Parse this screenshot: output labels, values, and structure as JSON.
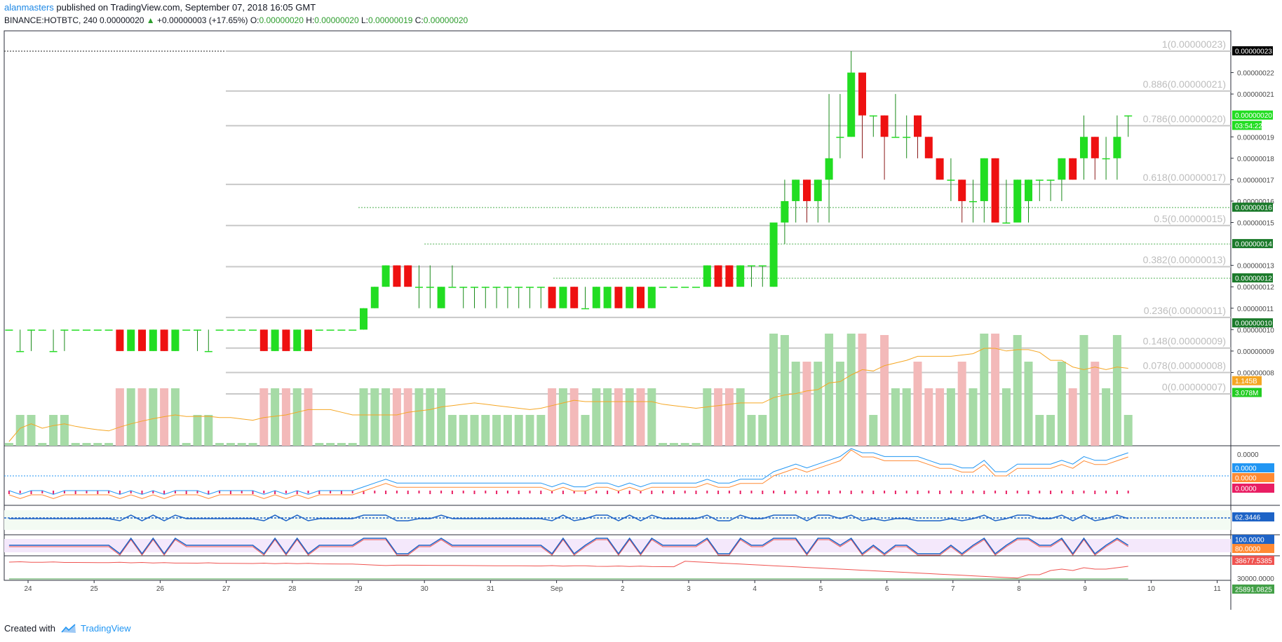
{
  "header": {
    "author": "alanmasters",
    "published_text": " published on TradingView.com, September 07, 2018 16:05 GMT",
    "symbol": "BINANCE:HOTBTC, 240",
    "last": "0.00000020",
    "arrow": "▲",
    "change": "+0.00000003 (+17.65%)",
    "o_label": "O:",
    "o": "0.00000020",
    "h_label": "H:",
    "h": "0.00000020",
    "l_label": "L:",
    "l": "0.00000019",
    "c_label": "C:",
    "c": "0.00000020"
  },
  "footer": {
    "created_with": "Created with",
    "brand": "TradingView"
  },
  "colors": {
    "up": "#22dd22",
    "down": "#ee1111",
    "vol_up": "#a6dba6",
    "vol_down": "#f3b9b9",
    "fib": "#c8c8c8",
    "signal": "#4caf50"
  },
  "chart_data": [
    {
      "type": "candlestick",
      "ylim": [
        7,
        24
      ],
      "y_ticks": [
        "0.00000022",
        "0.00000021",
        "0.00000019",
        "0.00000018",
        "0.00000017",
        "0.00000016",
        "0.00000015",
        "0.00000013",
        "0.00000012",
        "0.00000011",
        "0.00000010",
        "0.00000009",
        "0.00000008"
      ],
      "x_ticks": [
        "24",
        "25",
        "26",
        "27",
        "28",
        "29",
        "30",
        "31",
        "Sep",
        "2",
        "3",
        "4",
        "5",
        "6",
        "7",
        "8",
        "9",
        "10",
        "11"
      ],
      "price_tags": [
        {
          "label": "0.00000023",
          "value": 23,
          "bg": "#000000"
        },
        {
          "label": "0.00000020",
          "value": 20,
          "bg": "#22dd22"
        },
        {
          "label": "03:54:22",
          "value": 19.52,
          "bg": "#22dd22"
        },
        {
          "label": "0.00000016",
          "value": 15.7,
          "bg": "#1b7a2b"
        },
        {
          "label": "0.00000014",
          "value": 14.0,
          "bg": "#1b7a2b"
        },
        {
          "label": "0.00000012",
          "value": 12.4,
          "bg": "#1b7a2b"
        },
        {
          "label": "0.00000010",
          "value": 10.3,
          "bg": "#1b7a2b"
        },
        {
          "label": "1.145B",
          "value": 7.6,
          "bg": "#f5a623"
        },
        {
          "label": "3.078M",
          "value": 7.05,
          "bg": "#22cc22"
        }
      ],
      "fib_levels": [
        {
          "label": "1(0.00000023)",
          "value": 23
        },
        {
          "label": "0.886(0.00000021)",
          "value": 21.14
        },
        {
          "label": "0.786(0.00000020)",
          "value": 19.52
        },
        {
          "label": "0.618(0.00000017)",
          "value": 16.78
        },
        {
          "label": "0.5(0.00000015)",
          "value": 14.86
        },
        {
          "label": "0.382(0.00000013)",
          "value": 12.94
        },
        {
          "label": "0.236(0.00000011)",
          "value": 10.57
        },
        {
          "label": "0.148(0.00000009)",
          "value": 9.14
        },
        {
          "label": "0.078(0.00000008)",
          "value": 8.0
        },
        {
          "label": "0(0.00000007)",
          "value": 7.0
        }
      ],
      "signal_lines": [
        {
          "value": 15.7,
          "x_start": 5.0
        },
        {
          "value": 14.0,
          "x_start": 6.0
        },
        {
          "value": 12.4,
          "x_start": 7.95
        }
      ],
      "candles_rle": [
        {
          "n": 6,
          "p": [
            [
              10,
              10,
              10,
              10
            ],
            [
              9,
              10,
              9,
              9
            ],
            [
              10,
              10,
              9,
              10
            ]
          ]
        },
        {
          "n": 4,
          "p": [
            [
              10,
              10,
              10,
              10
            ],
            [
              10,
              10,
              10,
              10
            ]
          ]
        },
        {
          "n": 6,
          "p": [
            [
              10,
              10,
              9,
              9
            ],
            [
              9,
              10,
              9,
              10
            ]
          ]
        },
        {
          "n": 3,
          "p": [
            [
              10,
              10,
              10,
              10
            ],
            [
              10,
              10,
              9,
              10
            ],
            [
              9,
              10,
              9,
              9
            ]
          ]
        },
        {
          "n": 4,
          "p": [
            [
              10,
              10,
              10,
              10
            ],
            [
              10,
              10,
              10,
              10
            ]
          ]
        },
        {
          "n": 5,
          "p": [
            [
              10,
              10,
              9,
              9
            ],
            [
              9,
              10,
              9,
              10
            ]
          ]
        },
        {
          "n": 4,
          "p": [
            [
              10,
              10,
              10,
              10
            ],
            [
              10,
              10,
              10,
              10
            ]
          ]
        },
        {
          "n": 1,
          "p": [
            [
              10,
              11,
              10,
              11
            ]
          ]
        },
        {
          "n": 1,
          "p": [
            [
              11,
              12,
              11,
              12
            ]
          ]
        },
        {
          "n": 1,
          "p": [
            [
              12,
              13,
              12,
              13
            ]
          ]
        },
        {
          "n": 2,
          "p": [
            [
              13,
              13,
              12,
              12
            ]
          ]
        },
        {
          "n": 2,
          "p": [
            [
              12,
              13,
              11,
              12
            ]
          ]
        },
        {
          "n": 1,
          "p": [
            [
              11,
              12,
              11,
              12
            ]
          ]
        },
        {
          "n": 1,
          "p": [
            [
              12,
              13,
              12,
              12
            ]
          ]
        },
        {
          "n": 8,
          "p": [
            [
              12,
              12,
              11,
              12
            ]
          ]
        },
        {
          "n": 1,
          "p": [
            [
              12,
              12,
              11,
              11
            ]
          ]
        },
        {
          "n": 1,
          "p": [
            [
              11,
              12,
              11,
              12
            ]
          ]
        },
        {
          "n": 1,
          "p": [
            [
              12,
              12,
              11,
              11
            ]
          ]
        },
        {
          "n": 1,
          "p": [
            [
              11,
              12,
              11,
              11
            ]
          ]
        },
        {
          "n": 2,
          "p": [
            [
              11,
              12,
              11,
              12
            ]
          ]
        },
        {
          "n": 1,
          "p": [
            [
              12,
              12,
              11,
              11
            ]
          ]
        },
        {
          "n": 1,
          "p": [
            [
              11,
              12,
              11,
              12
            ]
          ]
        },
        {
          "n": 1,
          "p": [
            [
              12,
              12,
              11,
              11
            ]
          ]
        },
        {
          "n": 1,
          "p": [
            [
              11,
              12,
              11,
              12
            ]
          ]
        },
        {
          "n": 4,
          "p": [
            [
              12,
              12,
              12,
              12
            ]
          ]
        },
        {
          "n": 1,
          "p": [
            [
              12,
              13,
              12,
              13
            ]
          ]
        },
        {
          "n": 2,
          "p": [
            [
              13,
              13,
              12,
              12
            ]
          ]
        },
        {
          "n": 1,
          "p": [
            [
              12,
              13,
              12,
              13
            ]
          ]
        },
        {
          "n": 2,
          "p": [
            [
              13,
              13,
              12,
              13
            ]
          ]
        },
        {
          "n": 1,
          "p": [
            [
              12,
              15,
              12,
              15
            ]
          ]
        },
        {
          "n": 1,
          "p": [
            [
              15,
              17,
              14,
              16
            ]
          ]
        },
        {
          "n": 1,
          "p": [
            [
              16,
              17,
              15,
              17
            ]
          ]
        },
        {
          "n": 1,
          "p": [
            [
              17,
              17,
              15,
              16
            ]
          ]
        },
        {
          "n": 1,
          "p": [
            [
              16,
              17,
              15,
              17
            ]
          ]
        },
        {
          "n": 1,
          "p": [
            [
              17,
              21,
              15,
              18
            ]
          ]
        },
        {
          "n": 1,
          "p": [
            [
              19,
              21,
              18,
              19
            ]
          ]
        },
        {
          "n": 1,
          "p": [
            [
              19,
              23,
              19,
              22
            ]
          ]
        },
        {
          "n": 1,
          "p": [
            [
              22,
              22,
              18,
              20
            ]
          ]
        },
        {
          "n": 1,
          "p": [
            [
              20,
              20,
              19,
              20
            ]
          ]
        },
        {
          "n": 1,
          "p": [
            [
              20,
              20,
              17,
              19
            ]
          ]
        },
        {
          "n": 1,
          "p": [
            [
              19,
              21,
              19,
              19
            ]
          ]
        },
        {
          "n": 1,
          "p": [
            [
              19,
              20,
              18,
              19
            ]
          ]
        },
        {
          "n": 1,
          "p": [
            [
              20,
              20,
              18,
              19
            ]
          ]
        },
        {
          "n": 1,
          "p": [
            [
              19,
              19,
              18,
              18
            ]
          ]
        },
        {
          "n": 1,
          "p": [
            [
              18,
              18,
              17,
              17
            ]
          ]
        },
        {
          "n": 1,
          "p": [
            [
              17,
              18,
              16,
              17
            ]
          ]
        },
        {
          "n": 1,
          "p": [
            [
              17,
              17,
              15,
              16
            ]
          ]
        },
        {
          "n": 1,
          "p": [
            [
              16,
              17,
              15,
              16
            ]
          ]
        },
        {
          "n": 1,
          "p": [
            [
              16,
              18,
              15,
              18
            ]
          ]
        },
        {
          "n": 1,
          "p": [
            [
              18,
              18,
              15,
              15
            ]
          ]
        },
        {
          "n": 1,
          "p": [
            [
              15,
              17,
              15,
              15
            ]
          ]
        },
        {
          "n": 1,
          "p": [
            [
              15,
              17,
              15,
              17
            ]
          ]
        },
        {
          "n": 1,
          "p": [
            [
              16,
              17,
              15,
              17
            ]
          ]
        },
        {
          "n": 2,
          "p": [
            [
              17,
              17,
              16,
              17
            ]
          ]
        },
        {
          "n": 1,
          "p": [
            [
              17,
              18,
              16,
              18
            ]
          ]
        },
        {
          "n": 1,
          "p": [
            [
              18,
              18,
              17,
              17
            ]
          ]
        },
        {
          "n": 1,
          "p": [
            [
              18,
              20,
              17,
              19
            ]
          ]
        },
        {
          "n": 1,
          "p": [
            [
              19,
              19,
              17,
              18
            ]
          ]
        },
        {
          "n": 1,
          "p": [
            [
              18,
              19,
              17,
              18
            ]
          ]
        },
        {
          "n": 1,
          "p": [
            [
              18,
              20,
              17,
              19
            ]
          ]
        },
        {
          "n": 1,
          "p": [
            [
              20,
              20,
              19,
              20
            ]
          ]
        }
      ],
      "volume": {
        "ylim": [
          0,
          1000
        ],
        "sma_label": "1.145B",
        "last_label": "3.078M"
      },
      "indicator_labels": [
        "0.0000",
        "0.0000",
        "0.0000",
        "0.0000",
        "62.3446",
        "100.0000",
        "80.0000",
        "38677.5385",
        "30000.0000",
        "25891.0825"
      ]
    }
  ]
}
